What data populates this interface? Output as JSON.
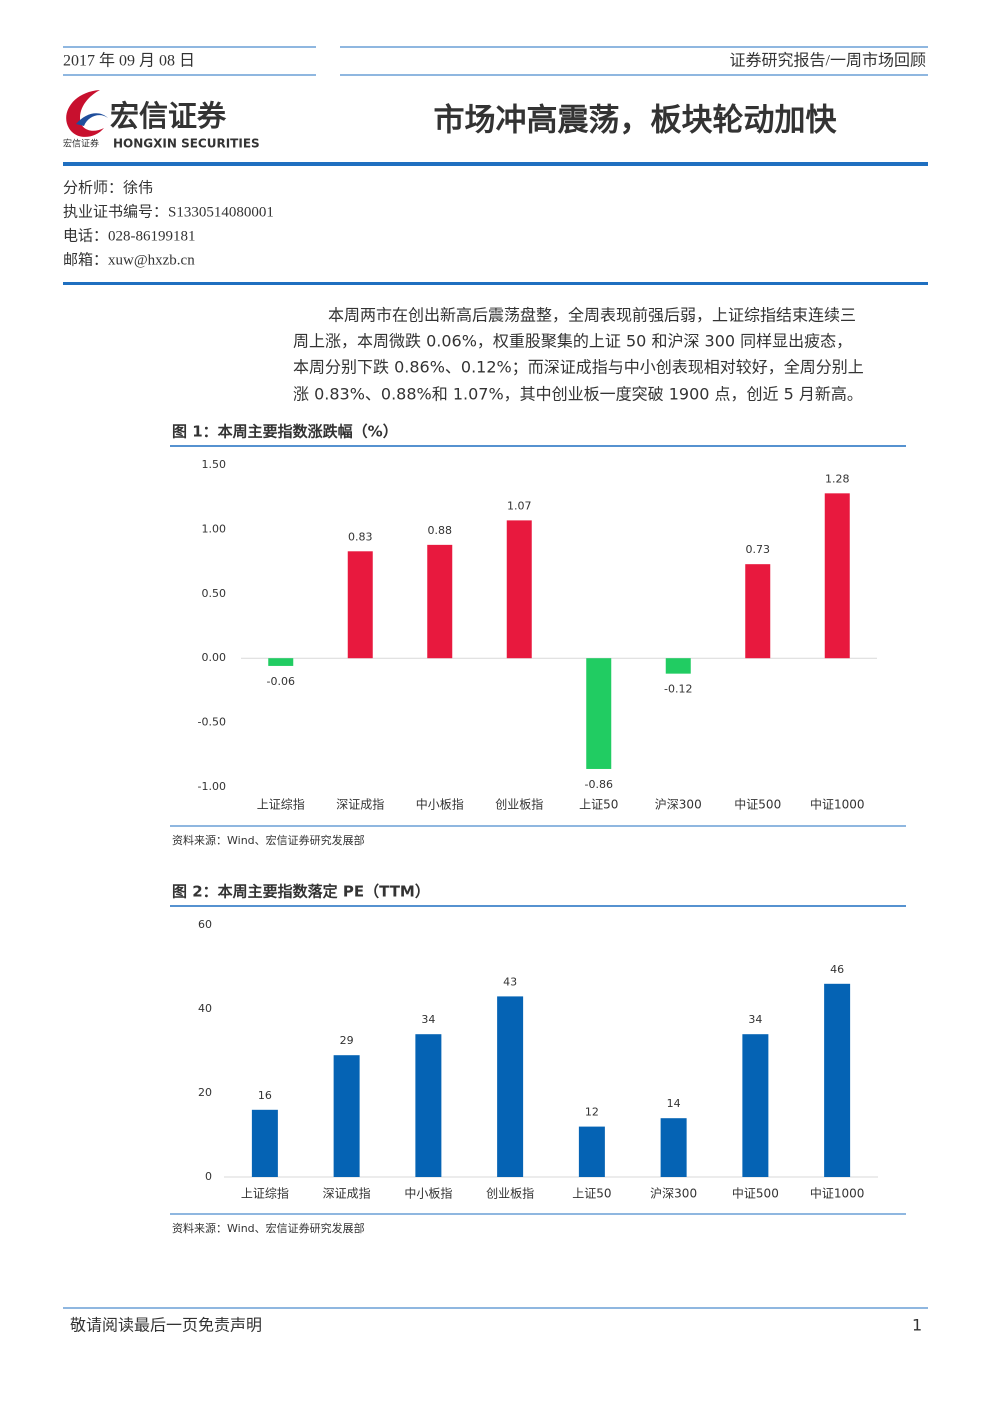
{
  "header": {
    "date": "2017 年 09 月 08 日",
    "report_type": "证券研究报告/一周市场回顾",
    "logo_name": "宏信证券",
    "logo_english": "HONGXIN SECURITIES",
    "logo_small": "宏信证券",
    "title": "市场冲高震荡，板块轮动加快"
  },
  "analyst": [
    "分析师：徐伟",
    "执业证书编号：S1330514080001",
    "电话：028-86199181",
    "邮箱：xuw@hxzb.cn"
  ],
  "paragraph": [
    "本周两市在创出新高后震荡盘整，全周表现前强后弱，上证综指结束连续三",
    "周上涨，本周微跌 0.06%，权重股聚集的上证 50 和沪深 300 同样显出疲态，",
    "本周分别下跌 0.86%、0.12%；而深证成指与中小创表现相对较好，全周分别上",
    "涨 0.83%、0.88%和 1.07%，其中创业板一度突破 1900 点，创近 5 月新高。"
  ],
  "chart_data": [
    {
      "type": "bar",
      "title": "图 1：本周主要指数涨跌幅（%）",
      "categories": [
        "上证综指",
        "深证成指",
        "中小板指",
        "创业板指",
        "上证50",
        "沪深300",
        "中证500",
        "中证1000"
      ],
      "values": [
        -0.06,
        0.83,
        0.88,
        1.07,
        -0.86,
        -0.12,
        0.73,
        1.28
      ],
      "color": "#e8193e",
      "negative_color": "#21cc62",
      "ylim": [
        -1,
        1.5
      ],
      "yticks": [
        {
          "value": 1.5,
          "label": "1.50"
        },
        {
          "value": 1,
          "label": "1.00"
        },
        {
          "value": 0.5,
          "label": "0.50"
        },
        {
          "value": 0,
          "label": "0.00"
        },
        {
          "value": -0.5,
          "label": "-0.50"
        },
        {
          "value": -1,
          "label": "-1.00"
        }
      ],
      "grid": false,
      "source": "资料来源：Wind、宏信证券研究发展部"
    },
    {
      "type": "bar",
      "title": "图 2：本周主要指数落定 PE（TTM）",
      "categories": [
        "上证综指",
        "深证成指",
        "中小板指",
        "创业板指",
        "上证50",
        "沪深300",
        "中证500",
        "中证1000"
      ],
      "values": [
        16,
        29,
        34,
        43,
        12,
        14,
        34,
        46
      ],
      "color": "#0563b4",
      "ylim": [
        0,
        60
      ],
      "yticks": [
        0,
        20,
        40,
        60
      ],
      "grid": false,
      "source": "资料来源：Wind、宏信证券研究发展部"
    }
  ],
  "footer": {
    "disclaimer": "敬请阅读最后一页免责声明",
    "page": "1"
  }
}
